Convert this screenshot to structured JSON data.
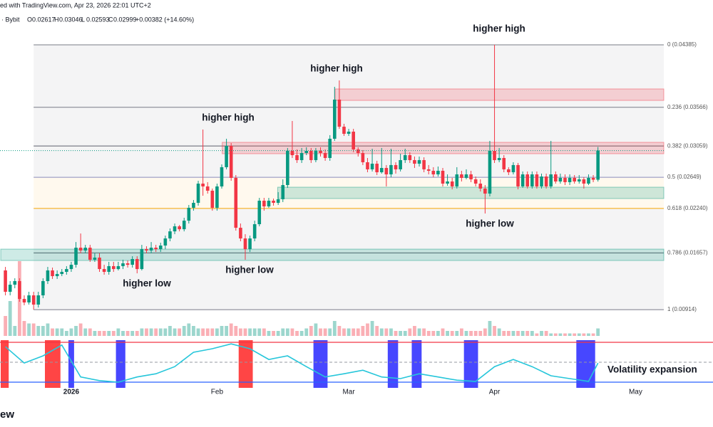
{
  "header": {
    "source": "ed with TradingView.com, Apr 23, 2026 22:01 UTC+2",
    "symbol": "· Bybit",
    "ohlc": [
      {
        "label": "O",
        "value": "0.02617"
      },
      {
        "label": "H",
        "value": "0.03046"
      },
      {
        "label": "L",
        "value": "0.02593"
      },
      {
        "label": "C",
        "value": "0.02999"
      }
    ],
    "change": "+0.00382 (+14.60%)"
  },
  "chart_data": {
    "type": "candlestick",
    "x": [
      -14,
      -13,
      -12,
      -11,
      -10,
      -9,
      -8,
      -7,
      -6,
      -5,
      -4,
      -3,
      -2,
      -1,
      0,
      1,
      2,
      3,
      4,
      5,
      6,
      7,
      8,
      9,
      10,
      11,
      12,
      13,
      14,
      15,
      16,
      17,
      18,
      19,
      20,
      21,
      22,
      23,
      24,
      25,
      26,
      27,
      28,
      29,
      30,
      31,
      32,
      33,
      34,
      35,
      36,
      37,
      38,
      39,
      40,
      41,
      42,
      43,
      44,
      45,
      46,
      47,
      48,
      49,
      50,
      51,
      52,
      53,
      54,
      55,
      56,
      57,
      58,
      59,
      60,
      61,
      62,
      63,
      64,
      65,
      66,
      67,
      68,
      69,
      70,
      71,
      72,
      73,
      74,
      75,
      76,
      77,
      78,
      79,
      80,
      81,
      82,
      83,
      84,
      85,
      86,
      87,
      88,
      89,
      90,
      91,
      92,
      93,
      94,
      95,
      96,
      97,
      98,
      99,
      100,
      101,
      102,
      103,
      104,
      105,
      106,
      107,
      108,
      109,
      110,
      111,
      112
    ],
    "open": [
      0.01428,
      0.01148,
      0.01241,
      0.01288,
      0.01054,
      0.01008,
      0.01101,
      0.0098,
      0.01101,
      0.01288,
      0.01428,
      0.01353,
      0.01381,
      0.01409,
      0.01446,
      0.01502,
      0.01726,
      0.01689,
      0.01726,
      0.01568,
      0.01596,
      0.01446,
      0.01409,
      0.01484,
      0.01446,
      0.01484,
      0.01521,
      0.01502,
      0.01577,
      0.01446,
      0.01707,
      0.01689,
      0.01726,
      0.01707,
      0.01754,
      0.01847,
      0.0194,
      0.02006,
      0.01968,
      0.0208,
      0.02249,
      0.02314,
      0.02566,
      0.02529,
      0.02473,
      0.02249,
      0.02529,
      0.02781,
      0.0306,
      0.02641,
      0.01987,
      0.01847,
      0.01707,
      0.01847,
      0.02034,
      0.02342,
      0.02267,
      0.02342,
      0.02314,
      0.02361,
      0.02547,
      0.02995,
      0.02939,
      0.02874,
      0.02967,
      0.02995,
      0.02874,
      0.02995,
      0.02967,
      0.02902,
      0.03154,
      0.03667,
      0.03312,
      0.03219,
      0.03247,
      0.03014,
      0.02967,
      0.02846,
      0.02753,
      0.02827,
      0.02715,
      0.02771,
      0.02687,
      0.02809,
      0.02753,
      0.02874,
      0.02939,
      0.02874,
      0.02827,
      0.02874,
      0.02753,
      0.02734,
      0.02687,
      0.02734,
      0.02566,
      0.02594,
      0.02529,
      0.02687,
      0.02641,
      0.02687,
      0.02622,
      0.02566,
      0.02501,
      0.02435,
      0.02995,
      0.02874,
      0.02902,
      0.02753,
      0.02715,
      0.02809,
      0.02529,
      0.02687,
      0.02529,
      0.02687,
      0.02529,
      0.02659,
      0.02529,
      0.02687,
      0.02594,
      0.02641,
      0.02585,
      0.02641,
      0.02594,
      0.02622,
      0.02566,
      0.02641,
      0.02617
    ],
    "high": [
      0.01474,
      0.01288,
      0.01325,
      0.01325,
      0.01101,
      0.01148,
      0.01148,
      0.01148,
      0.01325,
      0.01474,
      0.01465,
      0.01428,
      0.01446,
      0.01484,
      0.0154,
      0.018,
      0.01912,
      0.01763,
      0.01763,
      0.01652,
      0.01652,
      0.01502,
      0.0154,
      0.0154,
      0.0154,
      0.01568,
      0.01558,
      0.01614,
      0.01614,
      0.01763,
      0.01745,
      0.018,
      0.01763,
      0.01791,
      0.01884,
      0.01978,
      0.02043,
      0.02024,
      0.02118,
      0.02286,
      0.02351,
      0.02603,
      0.03275,
      0.02585,
      0.02501,
      0.02566,
      0.02818,
      0.03154,
      0.03098,
      0.02678,
      0.02043,
      0.01903,
      0.01884,
      0.0208,
      0.02379,
      0.02379,
      0.02379,
      0.0237,
      0.02454,
      0.02622,
      0.03033,
      0.03387,
      0.03014,
      0.03033,
      0.03042,
      0.03033,
      0.03033,
      0.03042,
      0.03014,
      0.03201,
      0.03835,
      0.03919,
      0.0335,
      0.03284,
      0.03284,
      0.03042,
      0.03005,
      0.02902,
      0.03023,
      0.02865,
      0.03033,
      0.02809,
      0.03023,
      0.02846,
      0.02958,
      0.03023,
      0.02977,
      0.02921,
      0.02921,
      0.02911,
      0.02809,
      0.02781,
      0.0279,
      0.02771,
      0.02687,
      0.02641,
      0.02781,
      0.02734,
      0.02753,
      0.02734,
      0.02659,
      0.02622,
      0.02547,
      0.03126,
      0.04385,
      0.03033,
      0.02939,
      0.02781,
      0.02846,
      0.02837,
      0.02725,
      0.02725,
      0.02725,
      0.02725,
      0.02697,
      0.02697,
      0.03126,
      0.02725,
      0.02697,
      0.02687,
      0.02687,
      0.02678,
      0.02678,
      0.0265,
      0.02687,
      0.02678,
      0.03046
    ],
    "low": [
      0.01101,
      0.01101,
      0.01194,
      0.01017,
      0.00971,
      0.0098,
      0.00914,
      0.00942,
      0.01064,
      0.0125,
      0.01316,
      0.01316,
      0.01353,
      0.01372,
      0.01409,
      0.01465,
      0.01652,
      0.01652,
      0.0154,
      0.0154,
      0.01409,
      0.01372,
      0.01372,
      0.01409,
      0.01428,
      0.01446,
      0.01465,
      0.01465,
      0.0139,
      0.01428,
      0.01652,
      0.01652,
      0.0167,
      0.0167,
      0.01707,
      0.0181,
      0.01903,
      0.0194,
      0.0194,
      0.02043,
      0.02211,
      0.02277,
      0.02407,
      0.02435,
      0.02211,
      0.02211,
      0.02501,
      0.02753,
      0.02603,
      0.0195,
      0.0181,
      0.01568,
      0.0167,
      0.0181,
      0.02006,
      0.02211,
      0.02249,
      0.02277,
      0.02286,
      0.02324,
      0.0251,
      0.02902,
      0.02837,
      0.02837,
      0.02939,
      0.02837,
      0.02846,
      0.02921,
      0.02865,
      0.02865,
      0.03126,
      0.03284,
      0.03191,
      0.03191,
      0.02977,
      0.02921,
      0.02809,
      0.02715,
      0.02725,
      0.02678,
      0.02697,
      0.02529,
      0.0265,
      0.02697,
      0.02725,
      0.02837,
      0.02837,
      0.02771,
      0.0279,
      0.02715,
      0.02687,
      0.0265,
      0.02659,
      0.02529,
      0.02538,
      0.02491,
      0.02501,
      0.02594,
      0.02622,
      0.02585,
      0.02529,
      0.02463,
      0.02174,
      0.02398,
      0.02837,
      0.02846,
      0.02715,
      0.02678,
      0.02687,
      0.02491,
      0.0251,
      0.02501,
      0.02501,
      0.02501,
      0.02501,
      0.02501,
      0.02501,
      0.02566,
      0.02566,
      0.02547,
      0.02547,
      0.02566,
      0.02566,
      0.02501,
      0.02547,
      0.02585,
      0.02593
    ],
    "close": [
      0.01148,
      0.01241,
      0.01288,
      0.01054,
      0.01008,
      0.01101,
      0.0098,
      0.01101,
      0.01288,
      0.01428,
      0.01353,
      0.01381,
      0.01409,
      0.01446,
      0.01502,
      0.01726,
      0.01689,
      0.01726,
      0.01568,
      0.01596,
      0.01446,
      0.01409,
      0.01484,
      0.01446,
      0.01484,
      0.01521,
      0.01502,
      0.01577,
      0.01446,
      0.01707,
      0.01689,
      0.01726,
      0.01707,
      0.01754,
      0.01847,
      0.0194,
      0.02006,
      0.01968,
      0.0208,
      0.02249,
      0.02314,
      0.02566,
      0.02529,
      0.02473,
      0.02249,
      0.02529,
      0.02781,
      0.0306,
      0.02641,
      0.01987,
      0.01847,
      0.01707,
      0.01847,
      0.02034,
      0.02342,
      0.02267,
      0.02342,
      0.02314,
      0.02361,
      0.02547,
      0.02995,
      0.02939,
      0.02874,
      0.02967,
      0.02995,
      0.02874,
      0.02995,
      0.02967,
      0.02902,
      0.03154,
      0.03667,
      0.03312,
      0.03219,
      0.03247,
      0.03014,
      0.02967,
      0.02846,
      0.02753,
      0.02827,
      0.02715,
      0.02771,
      0.02687,
      0.02809,
      0.02753,
      0.02874,
      0.02939,
      0.02874,
      0.02827,
      0.02874,
      0.02753,
      0.02734,
      0.02687,
      0.02734,
      0.02566,
      0.02594,
      0.02529,
      0.02687,
      0.02641,
      0.02687,
      0.02622,
      0.02566,
      0.02501,
      0.02435,
      0.02995,
      0.02874,
      0.02902,
      0.02753,
      0.02715,
      0.02809,
      0.02529,
      0.02687,
      0.02529,
      0.02687,
      0.02529,
      0.02659,
      0.02529,
      0.02687,
      0.02594,
      0.02641,
      0.02585,
      0.02641,
      0.02594,
      0.02622,
      0.02566,
      0.02641,
      0.02617,
      0.02999
    ],
    "volume": [
      8,
      14,
      4,
      30,
      6,
      5,
      5,
      4,
      4,
      5,
      3,
      3,
      3,
      2,
      3,
      4,
      5,
      3,
      3,
      2,
      2,
      2,
      2,
      2,
      3,
      2,
      2,
      2,
      2,
      3,
      3,
      3,
      3,
      3,
      3,
      4,
      3,
      3,
      4,
      5,
      4,
      3,
      3,
      3,
      3,
      3,
      4,
      4,
      5,
      4,
      3,
      3,
      3,
      3,
      3,
      3,
      2,
      2,
      2,
      3,
      3,
      3,
      2,
      2,
      3,
      4,
      5,
      3,
      3,
      3,
      6,
      4,
      3,
      3,
      3,
      3,
      4,
      5,
      6,
      4,
      3,
      3,
      3,
      2,
      2,
      2,
      3,
      4,
      3,
      3,
      2,
      2,
      2,
      3,
      2,
      2,
      2,
      3,
      2,
      2,
      2,
      2,
      3,
      6,
      4,
      3,
      2,
      2,
      2,
      2,
      2,
      2,
      2,
      1,
      2,
      2,
      1,
      1,
      1,
      1,
      1,
      1,
      1,
      1,
      1,
      1,
      3
    ],
    "up_color": "#089981",
    "down_color": "#f23645",
    "xlim": [
      -15,
      126
    ],
    "xticks": [
      {
        "value": 0,
        "label": "2026"
      },
      {
        "value": 31,
        "label": "Feb"
      },
      {
        "value": 59,
        "label": "Mar"
      },
      {
        "value": 90,
        "label": "Apr"
      },
      {
        "value": 120,
        "label": "May"
      }
    ],
    "ylim": [
      0.00728,
      0.04973
    ],
    "fib": {
      "start": -8,
      "levels": [
        {
          "label": "0 (0.04385)",
          "price": 0.04385,
          "color": "#787b86",
          "fill": "#f4f4f5"
        },
        {
          "label": "0.236 (0.03566)",
          "price": 0.03566,
          "color": "#787b86",
          "fill": "#f4f4f5"
        },
        {
          "label": "0.382 (0.03059)",
          "price": 0.03059,
          "color": "#5d606b",
          "fill": "#f4f4f5"
        },
        {
          "label": "0.5 (0.02649)",
          "price": 0.02649,
          "color": "#8a8dbb",
          "fill": "#fff9ee"
        },
        {
          "label": "0.618 (0.02240)",
          "price": 0.0224,
          "color": "#f7a600",
          "fill": "#f4f4f5"
        },
        {
          "label": "0.786 (0.01657)",
          "price": 0.01657,
          "color": "#5d606b",
          "fill": "#f4f4f5"
        },
        {
          "label": "1 (0.00914)",
          "price": 0.00914,
          "color": "#787b86"
        }
      ]
    },
    "zones": [
      {
        "start": 56.1,
        "top": 0.03807,
        "bottom": 0.03657,
        "color": "#f23645"
      },
      {
        "start": 32.1,
        "top": 0.03107,
        "bottom": 0.02958,
        "color": "#f23645"
      },
      {
        "start": 43.9,
        "top": 0.02519,
        "bottom": 0.0237,
        "color": "#089981"
      },
      {
        "start": -15,
        "top": 0.01707,
        "bottom": 0.01558,
        "color": "#089981"
      }
    ],
    "annotations": [
      "higher high",
      "higher high",
      "higher high",
      "higher low",
      "higher low",
      "higher low"
    ],
    "oscillator": {
      "type": "line",
      "x": [
        -14,
        -10,
        -6,
        -2,
        2,
        6,
        10,
        14,
        18,
        22,
        26,
        30,
        34,
        38,
        42,
        46,
        50,
        54,
        58,
        62,
        66,
        70,
        74,
        78,
        82,
        86,
        90,
        94,
        98,
        102,
        106,
        110,
        112
      ],
      "values": [
        0.89,
        0.48,
        0.66,
        0.93,
        0.13,
        0.04,
        0,
        0.13,
        0.21,
        0.39,
        0.75,
        0.84,
        0.96,
        0.84,
        0.57,
        0.66,
        0.39,
        0.13,
        0.21,
        0.3,
        0.13,
        0.09,
        0.21,
        0.13,
        0.05,
        0.02,
        0.39,
        0.57,
        0.39,
        0.16,
        0.09,
        0.02,
        0.48
      ],
      "color": "#26c6da",
      "ylim": [
        0,
        1
      ],
      "levels": [
        {
          "value": 1,
          "color": "#f23645",
          "dash": false
        },
        {
          "value": 0.5,
          "color": "#9598a1",
          "dash": true
        },
        {
          "value": 0,
          "color": "#2962ff",
          "dash": false
        }
      ],
      "zones": [
        {
          "start": -15,
          "end": -13.3,
          "color": "#ff3b3b"
        },
        {
          "start": -5.6,
          "end": -2.3,
          "color": "#ff3b3b"
        },
        {
          "start": -0.6,
          "end": 0.6,
          "color": "#3d3dff"
        },
        {
          "start": 9.5,
          "end": 11.5,
          "color": "#3d3dff"
        },
        {
          "start": 35.6,
          "end": 38.6,
          "color": "#ff3b3b"
        },
        {
          "start": 51.5,
          "end": 54.5,
          "color": "#3d3dff"
        },
        {
          "start": 67.3,
          "end": 69.5,
          "color": "#3d3dff"
        },
        {
          "start": 72.4,
          "end": 74.5,
          "color": "#3d3dff"
        },
        {
          "start": 83.5,
          "end": 86.5,
          "color": "#3d3dff"
        },
        {
          "start": 107.4,
          "end": 111.4,
          "color": "#3d3dff"
        }
      ],
      "annotation": "Volatility expansion"
    }
  },
  "footer": "ew"
}
